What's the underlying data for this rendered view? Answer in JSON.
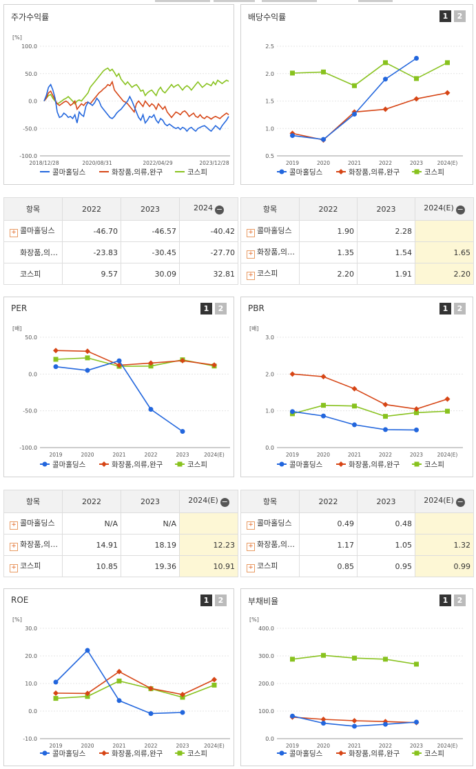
{
  "colors": {
    "company": "#2266dd",
    "sector": "#d64515",
    "kospi": "#88c21e"
  },
  "legend": [
    "콜마홀딩스",
    "화장품,의류,완구",
    "코스피"
  ],
  "toggle": {
    "one": "1",
    "two": "2"
  },
  "panels": {
    "price": {
      "title": "주가수익률"
    },
    "dividend": {
      "title": "배당수익률"
    },
    "per": {
      "title": "PER"
    },
    "pbr": {
      "title": "PBR"
    },
    "roe": {
      "title": "ROE"
    },
    "debt": {
      "title": "부채비율"
    }
  },
  "chart_data": [
    {
      "id": "price",
      "type": "line",
      "unit": "[%]",
      "ylim": [
        -100,
        100
      ],
      "yticks": [
        "100.0",
        "50.0",
        "0.0",
        "-50.0",
        "-100.0"
      ],
      "xticks": [
        "2018/12/28",
        "2020/08/31",
        "2022/04/29",
        "2023/12/28"
      ],
      "series": [
        {
          "name": "콜마홀딩스",
          "values": [
            0,
            10,
            25,
            30,
            20,
            5,
            -20,
            -30,
            -28,
            -22,
            -25,
            -30,
            -28,
            -32,
            -25,
            -40,
            -20,
            -25,
            -28,
            -10,
            -2,
            -5,
            -8,
            -3,
            5,
            0,
            -10,
            -15,
            -20,
            -25,
            -30,
            -32,
            -28,
            -22,
            -18,
            -15,
            -10,
            -5,
            0,
            8,
            0,
            -10,
            -20,
            -30,
            -35,
            -25,
            -40,
            -35,
            -28,
            -30,
            -25,
            -35,
            -40,
            -32,
            -35,
            -42,
            -45,
            -42,
            -45,
            -48,
            -50,
            -48,
            -52,
            -48,
            -50,
            -55,
            -50,
            -48,
            -52,
            -55,
            -50,
            -48,
            -46,
            -45,
            -48,
            -52,
            -55,
            -50,
            -45,
            -48,
            -52,
            -45,
            -40,
            -35,
            -28
          ]
        },
        {
          "name": "화장품,의류,완구",
          "values": [
            0,
            5,
            15,
            18,
            10,
            2,
            -5,
            -8,
            -5,
            -2,
            0,
            -3,
            -8,
            -5,
            0,
            -15,
            -10,
            -5,
            -8,
            -3,
            -2,
            -5,
            0,
            5,
            10,
            15,
            18,
            22,
            25,
            30,
            28,
            35,
            20,
            15,
            10,
            5,
            0,
            -2,
            -5,
            -10,
            -15,
            -20,
            -5,
            0,
            -5,
            -10,
            0,
            -5,
            -10,
            -5,
            -8,
            -15,
            -5,
            -10,
            -15,
            -10,
            -20,
            -25,
            -30,
            -25,
            -20,
            -22,
            -25,
            -20,
            -18,
            -22,
            -28,
            -25,
            -22,
            -28,
            -30,
            -25,
            -30,
            -32,
            -28,
            -30,
            -33,
            -30,
            -28,
            -30,
            -32,
            -28,
            -25,
            -22,
            -25
          ]
        },
        {
          "name": "코스피",
          "values": [
            0,
            5,
            10,
            12,
            5,
            0,
            -5,
            -3,
            0,
            3,
            5,
            8,
            4,
            0,
            -5,
            0,
            2,
            0,
            5,
            10,
            15,
            25,
            30,
            35,
            40,
            45,
            50,
            55,
            58,
            60,
            55,
            58,
            52,
            45,
            50,
            40,
            35,
            30,
            35,
            30,
            25,
            28,
            30,
            25,
            18,
            20,
            10,
            15,
            18,
            20,
            15,
            10,
            20,
            25,
            18,
            15,
            20,
            25,
            30,
            25,
            28,
            30,
            25,
            20,
            25,
            28,
            25,
            20,
            25,
            30,
            35,
            30,
            25,
            28,
            32,
            30,
            28,
            35,
            30,
            38,
            35,
            32,
            35,
            38,
            36
          ]
        }
      ]
    },
    {
      "id": "dividend",
      "type": "line",
      "unit": "",
      "ylim": [
        0.5,
        2.5
      ],
      "yticks": [
        "2.5",
        "2.0",
        "1.5",
        "1.0",
        "0.5"
      ],
      "xticks": [
        "2019",
        "2020",
        "2021",
        "2022",
        "2023",
        "2024(E)"
      ],
      "series": [
        {
          "name": "콜마홀딩스",
          "values": [
            0.87,
            0.8,
            1.26,
            1.9,
            2.28,
            null
          ]
        },
        {
          "name": "화장품,의류,완구",
          "values": [
            0.91,
            0.79,
            1.3,
            1.35,
            1.54,
            1.65
          ]
        },
        {
          "name": "코스피",
          "values": [
            2.01,
            2.03,
            1.78,
            2.2,
            1.91,
            2.2
          ]
        }
      ]
    },
    {
      "id": "per",
      "type": "line",
      "unit": "[배]",
      "ylim": [
        -100,
        50
      ],
      "yticks": [
        "50.0",
        "0.0",
        "-50.0",
        "-100.0"
      ],
      "xticks": [
        "2019",
        "2020",
        "2021",
        "2022",
        "2023",
        "2024(E)"
      ],
      "series": [
        {
          "name": "콜마홀딩스",
          "values": [
            10,
            5,
            18,
            -48,
            -78,
            null
          ]
        },
        {
          "name": "화장품,의류,완구",
          "values": [
            32,
            31,
            12,
            14.91,
            18.19,
            12.23
          ]
        },
        {
          "name": "코스피",
          "values": [
            20,
            22,
            10.5,
            10.85,
            19.36,
            10.91
          ]
        }
      ]
    },
    {
      "id": "pbr",
      "type": "line",
      "unit": "[배]",
      "ylim": [
        0,
        3
      ],
      "yticks": [
        "3.0",
        "2.0",
        "1.0",
        "0.0"
      ],
      "xticks": [
        "2019",
        "2020",
        "2021",
        "2022",
        "2023",
        "2024(E)"
      ],
      "series": [
        {
          "name": "콜마홀딩스",
          "values": [
            0.98,
            0.86,
            0.62,
            0.49,
            0.48,
            null
          ]
        },
        {
          "name": "화장품,의류,완구",
          "values": [
            2.0,
            1.93,
            1.6,
            1.17,
            1.05,
            1.32
          ]
        },
        {
          "name": "코스피",
          "values": [
            0.92,
            1.15,
            1.13,
            0.85,
            0.95,
            0.99
          ]
        }
      ]
    },
    {
      "id": "roe",
      "type": "line",
      "unit": "[%]",
      "ylim": [
        -10,
        30
      ],
      "yticks": [
        "30.0",
        "20.0",
        "10.0",
        "0.0",
        "-10.0"
      ],
      "xticks": [
        "2019",
        "2020",
        "2021",
        "2022",
        "2023",
        "2024(E)"
      ],
      "series": [
        {
          "name": "콜마홀딩스",
          "values": [
            10.5,
            22,
            3.8,
            -0.9,
            -0.5,
            null
          ]
        },
        {
          "name": "화장품,의류,완구",
          "values": [
            6.5,
            6.4,
            14.3,
            8.2,
            6.0,
            11.4
          ]
        },
        {
          "name": "코스피",
          "values": [
            4.6,
            5.3,
            10.9,
            8.1,
            5.0,
            9.4
          ]
        }
      ]
    },
    {
      "id": "debt",
      "type": "line",
      "unit": "[%]",
      "ylim": [
        0,
        400
      ],
      "yticks": [
        "400.0",
        "300.0",
        "200.0",
        "100.0",
        "0.0"
      ],
      "xticks": [
        "2019",
        "2020",
        "2021",
        "2022",
        "2023",
        "2024(E)"
      ],
      "series": [
        {
          "name": "콜마홀딩스",
          "values": [
            82,
            56,
            45,
            52,
            60,
            null
          ]
        },
        {
          "name": "화장품,의류,완구",
          "values": [
            78,
            70,
            65,
            62,
            58,
            null
          ]
        },
        {
          "name": "코스피",
          "values": [
            288,
            302,
            292,
            288,
            270,
            null
          ]
        }
      ]
    }
  ],
  "tables": {
    "price": {
      "header": [
        "항목",
        "2022",
        "2023",
        "2024"
      ],
      "rows": [
        {
          "label": "콜마홀딩스",
          "plus": true,
          "values": [
            "-46.70",
            "-46.57",
            "-40.42"
          ]
        },
        {
          "label": "화장품,의…",
          "plus": false,
          "values": [
            "-23.83",
            "-30.45",
            "-27.70"
          ]
        },
        {
          "label": "코스피",
          "plus": false,
          "values": [
            "9.57",
            "30.09",
            "32.81"
          ]
        }
      ]
    },
    "dividend": {
      "header": [
        "항목",
        "2022",
        "2023",
        "2024(E)"
      ],
      "rows": [
        {
          "label": "콜마홀딩스",
          "plus": true,
          "values": [
            "1.90",
            "2.28",
            ""
          ]
        },
        {
          "label": "화장품,의…",
          "plus": true,
          "values": [
            "1.35",
            "1.54",
            "1.65"
          ]
        },
        {
          "label": "코스피",
          "plus": true,
          "values": [
            "2.20",
            "1.91",
            "2.20"
          ]
        }
      ]
    },
    "per": {
      "header": [
        "항목",
        "2022",
        "2023",
        "2024(E)"
      ],
      "rows": [
        {
          "label": "콜마홀딩스",
          "plus": true,
          "values": [
            "N/A",
            "N/A",
            ""
          ]
        },
        {
          "label": "화장품,의…",
          "plus": true,
          "values": [
            "14.91",
            "18.19",
            "12.23"
          ]
        },
        {
          "label": "코스피",
          "plus": true,
          "values": [
            "10.85",
            "19.36",
            "10.91"
          ]
        }
      ]
    },
    "pbr": {
      "header": [
        "항목",
        "2022",
        "2023",
        "2024(E)"
      ],
      "rows": [
        {
          "label": "콜마홀딩스",
          "plus": true,
          "values": [
            "0.49",
            "0.48",
            ""
          ]
        },
        {
          "label": "화장품,의…",
          "plus": true,
          "values": [
            "1.17",
            "1.05",
            "1.32"
          ]
        },
        {
          "label": "코스피",
          "plus": true,
          "values": [
            "0.85",
            "0.95",
            "0.99"
          ]
        }
      ]
    }
  }
}
